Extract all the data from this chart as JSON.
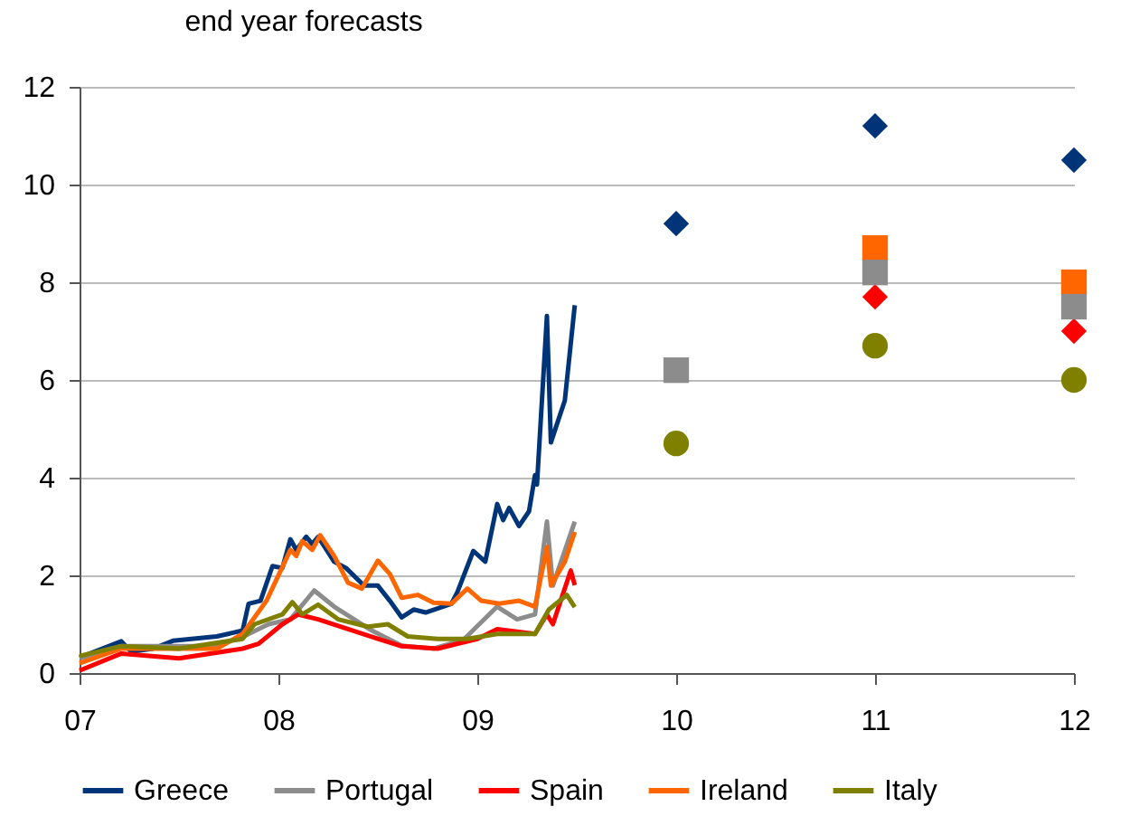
{
  "chart_data": {
    "type": "line",
    "annotations": [
      "end year forecasts"
    ],
    "xlim": [
      7,
      12
    ],
    "xticks": [
      {
        "value": 7,
        "label": "07"
      },
      {
        "value": 8,
        "label": "08"
      },
      {
        "value": 9,
        "label": "09"
      },
      {
        "value": 10,
        "label": "10"
      },
      {
        "value": 11,
        "label": "11"
      },
      {
        "value": 12,
        "label": "12"
      }
    ],
    "ylim": [
      0,
      12
    ],
    "yticks": [
      0,
      2,
      4,
      6,
      8,
      10,
      12
    ],
    "grid": "y",
    "legend": "bottom",
    "series": [
      {
        "name": "Greece",
        "marker": "none",
        "color": "#003478",
        "x": [
          7.0,
          7.21,
          7.26,
          7.37,
          7.47,
          7.69,
          7.82,
          7.85,
          7.91,
          7.97,
          8.02,
          8.06,
          8.09,
          8.14,
          8.17,
          8.2,
          8.28,
          8.34,
          8.43,
          8.5,
          8.56,
          8.62,
          8.68,
          8.74,
          8.87,
          8.9,
          8.98,
          9.04,
          9.1,
          9.13,
          9.16,
          9.21,
          9.26,
          9.29,
          9.3,
          9.35,
          9.37,
          9.4,
          9.44,
          9.49
        ],
        "values": [
          0.32,
          0.65,
          0.44,
          0.5,
          0.66,
          0.75,
          0.87,
          1.42,
          1.48,
          2.19,
          2.15,
          2.74,
          2.52,
          2.79,
          2.64,
          2.79,
          2.28,
          2.15,
          1.79,
          1.79,
          1.48,
          1.14,
          1.3,
          1.24,
          1.42,
          1.66,
          2.5,
          2.28,
          3.46,
          3.13,
          3.38,
          3.01,
          3.31,
          4.05,
          3.86,
          7.31,
          4.72,
          5.09,
          5.58,
          7.53
        ]
      },
      {
        "name": "Portugal",
        "marker": "none",
        "color": "#8c8c8c",
        "x": [
          7.0,
          7.21,
          7.69,
          7.85,
          7.95,
          8.06,
          8.18,
          8.28,
          8.47,
          8.62,
          8.78,
          8.93,
          9.1,
          9.2,
          9.29,
          9.35,
          9.38,
          9.49
        ],
        "values": [
          0.3,
          0.55,
          0.55,
          0.8,
          1.0,
          1.1,
          1.69,
          1.36,
          0.87,
          0.56,
          0.5,
          0.68,
          1.36,
          1.1,
          1.2,
          3.1,
          1.79,
          3.1
        ]
      },
      {
        "name": "Spain",
        "marker": "none",
        "color": "#ff0000",
        "x": [
          7.0,
          7.21,
          7.5,
          7.82,
          7.9,
          8.02,
          8.1,
          8.2,
          8.35,
          8.5,
          8.62,
          8.8,
          9.0,
          9.1,
          9.29,
          9.35,
          9.38,
          9.47,
          9.49
        ],
        "values": [
          0.05,
          0.4,
          0.3,
          0.5,
          0.6,
          1.0,
          1.2,
          1.1,
          0.9,
          0.7,
          0.55,
          0.5,
          0.7,
          0.9,
          0.8,
          1.2,
          1.0,
          2.1,
          1.8
        ]
      },
      {
        "name": "Ireland",
        "marker": "none",
        "color": "#ff6600",
        "x": [
          7.0,
          7.21,
          7.69,
          7.82,
          7.94,
          8.06,
          8.09,
          8.12,
          8.17,
          8.21,
          8.28,
          8.35,
          8.42,
          8.5,
          8.56,
          8.62,
          8.7,
          8.78,
          8.87,
          8.95,
          9.02,
          9.11,
          9.21,
          9.29,
          9.35,
          9.37,
          9.44,
          9.49
        ],
        "values": [
          0.2,
          0.5,
          0.5,
          0.8,
          1.48,
          2.52,
          2.4,
          2.7,
          2.52,
          2.82,
          2.4,
          1.85,
          1.73,
          2.3,
          2.03,
          1.54,
          1.6,
          1.44,
          1.42,
          1.73,
          1.48,
          1.42,
          1.48,
          1.36,
          2.58,
          1.79,
          2.28,
          2.89
        ]
      },
      {
        "name": "Italy",
        "marker": "none",
        "color": "#808000",
        "x": [
          7.0,
          7.21,
          7.5,
          7.82,
          7.88,
          8.02,
          8.07,
          8.12,
          8.2,
          8.3,
          8.45,
          8.55,
          8.65,
          8.8,
          8.95,
          9.1,
          9.29,
          9.36,
          9.45,
          9.49
        ],
        "values": [
          0.35,
          0.55,
          0.5,
          0.7,
          1.0,
          1.2,
          1.45,
          1.2,
          1.4,
          1.1,
          0.95,
          1.0,
          0.75,
          0.7,
          0.7,
          0.8,
          0.8,
          1.3,
          1.6,
          1.35
        ]
      },
      {
        "type": "scatter",
        "marker": "diamond",
        "color": "#003478",
        "x": [
          10,
          11,
          12
        ],
        "values": [
          9.2,
          11.2,
          10.5
        ]
      },
      {
        "type": "scatter",
        "marker": "circle",
        "color": "#808000",
        "x": [
          10,
          11,
          12
        ],
        "values": [
          4.7,
          6.7,
          6.0
        ]
      },
      {
        "type": "scatter",
        "marker": "diamond",
        "color": "#ff0000",
        "x": [
          11,
          12
        ],
        "values": [
          7.7,
          7.0
        ]
      },
      {
        "type": "scatter",
        "marker": "square",
        "color": "#ff6600",
        "x": [
          11,
          12
        ],
        "values": [
          8.7,
          8.0
        ]
      },
      {
        "type": "scatter",
        "marker": "square",
        "color": "#8c8c8c",
        "x": [
          10,
          11,
          12
        ],
        "values": [
          6.2,
          8.2,
          7.5
        ]
      }
    ]
  }
}
